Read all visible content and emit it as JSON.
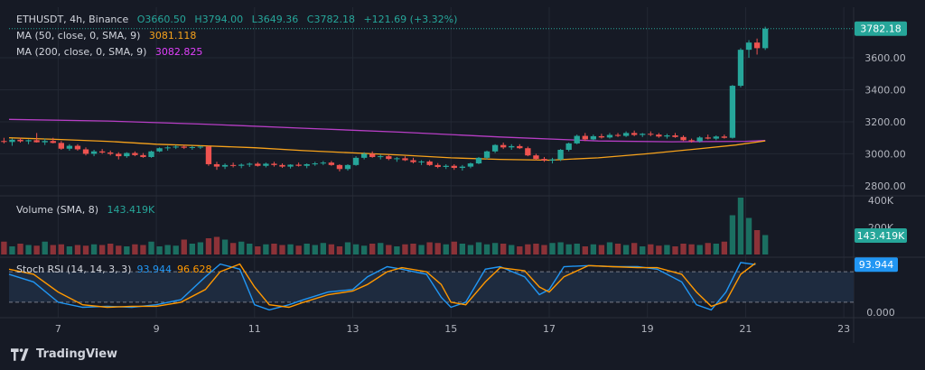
{
  "header": {
    "symbol": "ETHUSDT, 4h, Binance",
    "open": "O3660.50",
    "high": "H3794.00",
    "low": "L3649.36",
    "close": "C3782.18",
    "change": "+121.69 (+3.32%)"
  },
  "indicators": {
    "ma50_label": "MA (50, close, 0, SMA, 9)",
    "ma50_value": "3081.118",
    "ma200_label": "MA (200, close, 0, SMA, 9)",
    "ma200_value": "3082.825",
    "volume_label": "Volume (SMA, 8)",
    "volume_value": "143.419K",
    "stoch_label": "Stoch RSI (14, 14, 3, 3)",
    "stoch_k": "93.944",
    "stoch_d": "96.628"
  },
  "badges": {
    "price": "3782.18",
    "volume": "143.419K",
    "stoch": "93.944"
  },
  "price_axis": [
    "3600.00",
    "3400.00",
    "3200.00",
    "3000.00",
    "2800.00"
  ],
  "volume_axis": [
    "400K",
    "200K"
  ],
  "stoch_axis": [
    "0.000"
  ],
  "date_axis": [
    "7",
    "9",
    "11",
    "13",
    "15",
    "17",
    "19",
    "21",
    "23"
  ],
  "brand": "TradingView",
  "colors": {
    "up": "#26a69a",
    "down": "#ef5350",
    "ma50": "#f7a21b",
    "ma200": "#b73ec5",
    "stoch_k": "#2196f3",
    "stoch_d": "#ff9800",
    "background": "#161a25"
  },
  "chart_data": [
    {
      "type": "candlestick",
      "title": "ETHUSDT, 4h, Binance",
      "x_domain": [
        6.0,
        23.2
      ],
      "ylim": [
        2760,
        3820
      ],
      "yticks": [
        3600,
        3400,
        3200,
        3000,
        2800
      ],
      "xticks": [
        7,
        9,
        11,
        13,
        15,
        17,
        19,
        21,
        23
      ],
      "last_price": 3782.18,
      "candle_step_days": 0.1667,
      "candles": [
        [
          3135,
          3155,
          3115,
          3128
        ],
        [
          3128,
          3180,
          3120,
          3172
        ],
        [
          3172,
          3205,
          3125,
          3130
        ],
        [
          3130,
          3140,
          3085,
          3092
        ],
        [
          3092,
          3105,
          3075,
          3080
        ],
        [
          3080,
          3100,
          3065,
          3074
        ],
        [
          3074,
          3095,
          3050,
          3088
        ],
        [
          3088,
          3100,
          3070,
          3078
        ],
        [
          3078,
          3090,
          3060,
          3085
        ],
        [
          3085,
          3130,
          3070,
          3072
        ],
        [
          3072,
          3095,
          3055,
          3080
        ],
        [
          3080,
          3100,
          3065,
          3068
        ],
        [
          3068,
          3080,
          3025,
          3032
        ],
        [
          3032,
          3060,
          3020,
          3050
        ],
        [
          3050,
          3060,
          3020,
          3028
        ],
        [
          3028,
          3040,
          2990,
          3000
        ],
        [
          3000,
          3025,
          2985,
          3015
        ],
        [
          3015,
          3030,
          3000,
          3008
        ],
        [
          3008,
          3020,
          2990,
          3000
        ],
        [
          3000,
          3010,
          2965,
          2985
        ],
        [
          2985,
          3010,
          2975,
          3005
        ],
        [
          3005,
          3015,
          2985,
          2992
        ],
        [
          2992,
          3005,
          2975,
          2980
        ],
        [
          2980,
          3020,
          2975,
          3015
        ],
        [
          3015,
          3040,
          3010,
          3035
        ],
        [
          3035,
          3050,
          3020,
          3040
        ],
        [
          3040,
          3055,
          3030,
          3045
        ],
        [
          3045,
          3055,
          3030,
          3038
        ],
        [
          3038,
          3050,
          3025,
          3042
        ],
        [
          3042,
          3050,
          3030,
          3045
        ],
        [
          3045,
          3050,
          2925,
          2935
        ],
        [
          2935,
          2950,
          2900,
          2920
        ],
        [
          2920,
          2940,
          2905,
          2930
        ],
        [
          2930,
          2945,
          2915,
          2925
        ],
        [
          2925,
          2940,
          2910,
          2932
        ],
        [
          2932,
          2945,
          2918,
          2938
        ],
        [
          2938,
          2948,
          2920,
          2925
        ],
        [
          2925,
          2945,
          2915,
          2938
        ],
        [
          2938,
          2950,
          2920,
          2930
        ],
        [
          2930,
          2940,
          2912,
          2920
        ],
        [
          2920,
          2935,
          2908,
          2932
        ],
        [
          2932,
          2945,
          2920,
          2925
        ],
        [
          2925,
          2940,
          2910,
          2935
        ],
        [
          2935,
          2950,
          2925,
          2940
        ],
        [
          2940,
          2955,
          2930,
          2945
        ],
        [
          2945,
          2955,
          2925,
          2930
        ],
        [
          2930,
          2935,
          2890,
          2905
        ],
        [
          2905,
          2935,
          2895,
          2930
        ],
        [
          2930,
          2985,
          2925,
          2975
        ],
        [
          2975,
          3010,
          2965,
          3000
        ],
        [
          3000,
          3015,
          2975,
          2980
        ],
        [
          2980,
          2995,
          2965,
          2985
        ],
        [
          2985,
          2995,
          2960,
          2968
        ],
        [
          2968,
          2980,
          2950,
          2972
        ],
        [
          2972,
          2985,
          2955,
          2960
        ],
        [
          2960,
          2975,
          2940,
          2948
        ],
        [
          2948,
          2960,
          2930,
          2952
        ],
        [
          2952,
          2960,
          2925,
          2930
        ],
        [
          2930,
          2942,
          2910,
          2918
        ],
        [
          2918,
          2935,
          2905,
          2925
        ],
        [
          2925,
          2935,
          2900,
          2912
        ],
        [
          2912,
          2930,
          2895,
          2920
        ],
        [
          2920,
          2945,
          2910,
          2940
        ],
        [
          2940,
          2980,
          2935,
          2975
        ],
        [
          2975,
          3020,
          2965,
          3015
        ],
        [
          3015,
          3060,
          3005,
          3055
        ],
        [
          3055,
          3070,
          3030,
          3040
        ],
        [
          3040,
          3060,
          3025,
          3048
        ],
        [
          3048,
          3060,
          3030,
          3035
        ],
        [
          3035,
          3045,
          2985,
          2990
        ],
        [
          2990,
          3000,
          2960,
          2968
        ],
        [
          2968,
          2980,
          2950,
          2958
        ],
        [
          2958,
          2975,
          2940,
          2965
        ],
        [
          2965,
          3030,
          2955,
          3025
        ],
        [
          3025,
          3070,
          3015,
          3065
        ],
        [
          3065,
          3120,
          3060,
          3112
        ],
        [
          3112,
          3130,
          3080,
          3090
        ],
        [
          3090,
          3120,
          3085,
          3110
        ],
        [
          3110,
          3125,
          3095,
          3102
        ],
        [
          3102,
          3130,
          3095,
          3118
        ],
        [
          3118,
          3130,
          3105,
          3112
        ],
        [
          3112,
          3140,
          3105,
          3130
        ],
        [
          3130,
          3145,
          3110,
          3118
        ],
        [
          3118,
          3130,
          3105,
          3125
        ],
        [
          3125,
          3140,
          3110,
          3120
        ],
        [
          3120,
          3130,
          3100,
          3108
        ],
        [
          3108,
          3125,
          3095,
          3115
        ],
        [
          3115,
          3130,
          3100,
          3105
        ],
        [
          3105,
          3115,
          3080,
          3085
        ],
        [
          3085,
          3095,
          3070,
          3078
        ],
        [
          3078,
          3110,
          3070,
          3102
        ],
        [
          3102,
          3120,
          3090,
          3095
        ],
        [
          3095,
          3115,
          3085,
          3108
        ],
        [
          3108,
          3120,
          3095,
          3100
        ],
        [
          3100,
          3430,
          3095,
          3425
        ],
        [
          3425,
          3660,
          3415,
          3650
        ],
        [
          3650,
          3710,
          3600,
          3695
        ],
        [
          3695,
          3720,
          3620,
          3660
        ],
        [
          3660,
          3794,
          3649,
          3782
        ]
      ],
      "ma50": [
        [
          6.0,
          3100
        ],
        [
          7.0,
          3090
        ],
        [
          8.0,
          3078
        ],
        [
          9.0,
          3060
        ],
        [
          10.0,
          3050
        ],
        [
          11.0,
          3038
        ],
        [
          12.0,
          3020
        ],
        [
          13.0,
          3006
        ],
        [
          14.0,
          2992
        ],
        [
          15.0,
          2975
        ],
        [
          16.0,
          2965
        ],
        [
          17.0,
          2960
        ],
        [
          18.0,
          2975
        ],
        [
          19.0,
          3000
        ],
        [
          20.0,
          3030
        ],
        [
          20.8,
          3055
        ],
        [
          21.4,
          3081
        ]
      ],
      "ma200": [
        [
          6.0,
          3215
        ],
        [
          8.0,
          3205
        ],
        [
          10.0,
          3185
        ],
        [
          12.0,
          3160
        ],
        [
          14.0,
          3135
        ],
        [
          16.0,
          3105
        ],
        [
          18.0,
          3080
        ],
        [
          19.5,
          3075
        ],
        [
          21.0,
          3078
        ],
        [
          21.4,
          3083
        ]
      ]
    },
    {
      "type": "bar",
      "title": "Volume (SMA, 8)",
      "ylim": [
        0,
        400000
      ],
      "yticks": [
        400000,
        200000
      ],
      "values": [
        60000,
        75000,
        95000,
        85000,
        70000,
        95000,
        60000,
        80000,
        70000,
        65000,
        95000,
        70000,
        75000,
        60000,
        70000,
        65000,
        75000,
        70000,
        80000,
        65000,
        60000,
        75000,
        70000,
        95000,
        60000,
        70000,
        65000,
        110000,
        80000,
        90000,
        120000,
        130000,
        110000,
        85000,
        95000,
        80000,
        60000,
        75000,
        80000,
        70000,
        75000,
        65000,
        80000,
        70000,
        85000,
        75000,
        60000,
        90000,
        75000,
        65000,
        80000,
        85000,
        70000,
        60000,
        75000,
        80000,
        70000,
        90000,
        85000,
        75000,
        95000,
        80000,
        70000,
        90000,
        75000,
        85000,
        80000,
        70000,
        60000,
        75000,
        80000,
        70000,
        85000,
        90000,
        75000,
        80000,
        60000,
        75000,
        70000,
        90000,
        80000,
        70000,
        85000,
        60000,
        75000,
        65000,
        70000,
        60000,
        80000,
        75000,
        70000,
        85000,
        80000,
        95000,
        290000,
        420000,
        270000,
        180000,
        143419
      ]
    },
    {
      "type": "line",
      "title": "Stoch RSI (14, 14, 3, 3)",
      "ylim": [
        -5,
        105
      ],
      "yticks": [
        0
      ],
      "levels": [
        80,
        20
      ],
      "series": [
        {
          "name": "K",
          "points": [
            [
              6.0,
              75
            ],
            [
              6.5,
              60
            ],
            [
              7.0,
              20
            ],
            [
              7.5,
              10
            ],
            [
              8.0,
              12
            ],
            [
              8.5,
              10
            ],
            [
              9.0,
              15
            ],
            [
              9.5,
              25
            ],
            [
              10.0,
              70
            ],
            [
              10.3,
              95
            ],
            [
              10.7,
              85
            ],
            [
              11.0,
              15
            ],
            [
              11.3,
              5
            ],
            [
              11.7,
              15
            ],
            [
              12.0,
              25
            ],
            [
              12.5,
              40
            ],
            [
              13.0,
              45
            ],
            [
              13.3,
              70
            ],
            [
              13.7,
              90
            ],
            [
              14.0,
              85
            ],
            [
              14.5,
              75
            ],
            [
              14.8,
              30
            ],
            [
              15.0,
              10
            ],
            [
              15.3,
              20
            ],
            [
              15.7,
              85
            ],
            [
              16.0,
              90
            ],
            [
              16.5,
              70
            ],
            [
              16.8,
              35
            ],
            [
              17.0,
              45
            ],
            [
              17.3,
              90
            ],
            [
              17.8,
              92
            ],
            [
              18.3,
              90
            ],
            [
              18.8,
              90
            ],
            [
              19.2,
              85
            ],
            [
              19.7,
              60
            ],
            [
              20.0,
              15
            ],
            [
              20.3,
              5
            ],
            [
              20.6,
              40
            ],
            [
              20.9,
              98
            ],
            [
              21.2,
              93.944
            ]
          ]
        },
        {
          "name": "D",
          "points": [
            [
              6.0,
              85
            ],
            [
              6.5,
              75
            ],
            [
              7.0,
              40
            ],
            [
              7.5,
              15
            ],
            [
              8.0,
              10
            ],
            [
              8.5,
              12
            ],
            [
              9.0,
              12
            ],
            [
              9.5,
              20
            ],
            [
              10.0,
              45
            ],
            [
              10.3,
              80
            ],
            [
              10.7,
              95
            ],
            [
              11.0,
              50
            ],
            [
              11.3,
              15
            ],
            [
              11.7,
              10
            ],
            [
              12.0,
              20
            ],
            [
              12.5,
              35
            ],
            [
              13.0,
              42
            ],
            [
              13.3,
              55
            ],
            [
              13.7,
              80
            ],
            [
              14.0,
              88
            ],
            [
              14.5,
              80
            ],
            [
              14.8,
              55
            ],
            [
              15.0,
              20
            ],
            [
              15.3,
              15
            ],
            [
              15.7,
              60
            ],
            [
              16.0,
              88
            ],
            [
              16.5,
              82
            ],
            [
              16.8,
              50
            ],
            [
              17.0,
              40
            ],
            [
              17.3,
              70
            ],
            [
              17.8,
              92
            ],
            [
              18.3,
              90
            ],
            [
              18.8,
              88
            ],
            [
              19.2,
              88
            ],
            [
              19.7,
              75
            ],
            [
              20.0,
              40
            ],
            [
              20.3,
              12
            ],
            [
              20.6,
              22
            ],
            [
              20.9,
              75
            ],
            [
              21.2,
              96.628
            ]
          ]
        }
      ]
    }
  ]
}
